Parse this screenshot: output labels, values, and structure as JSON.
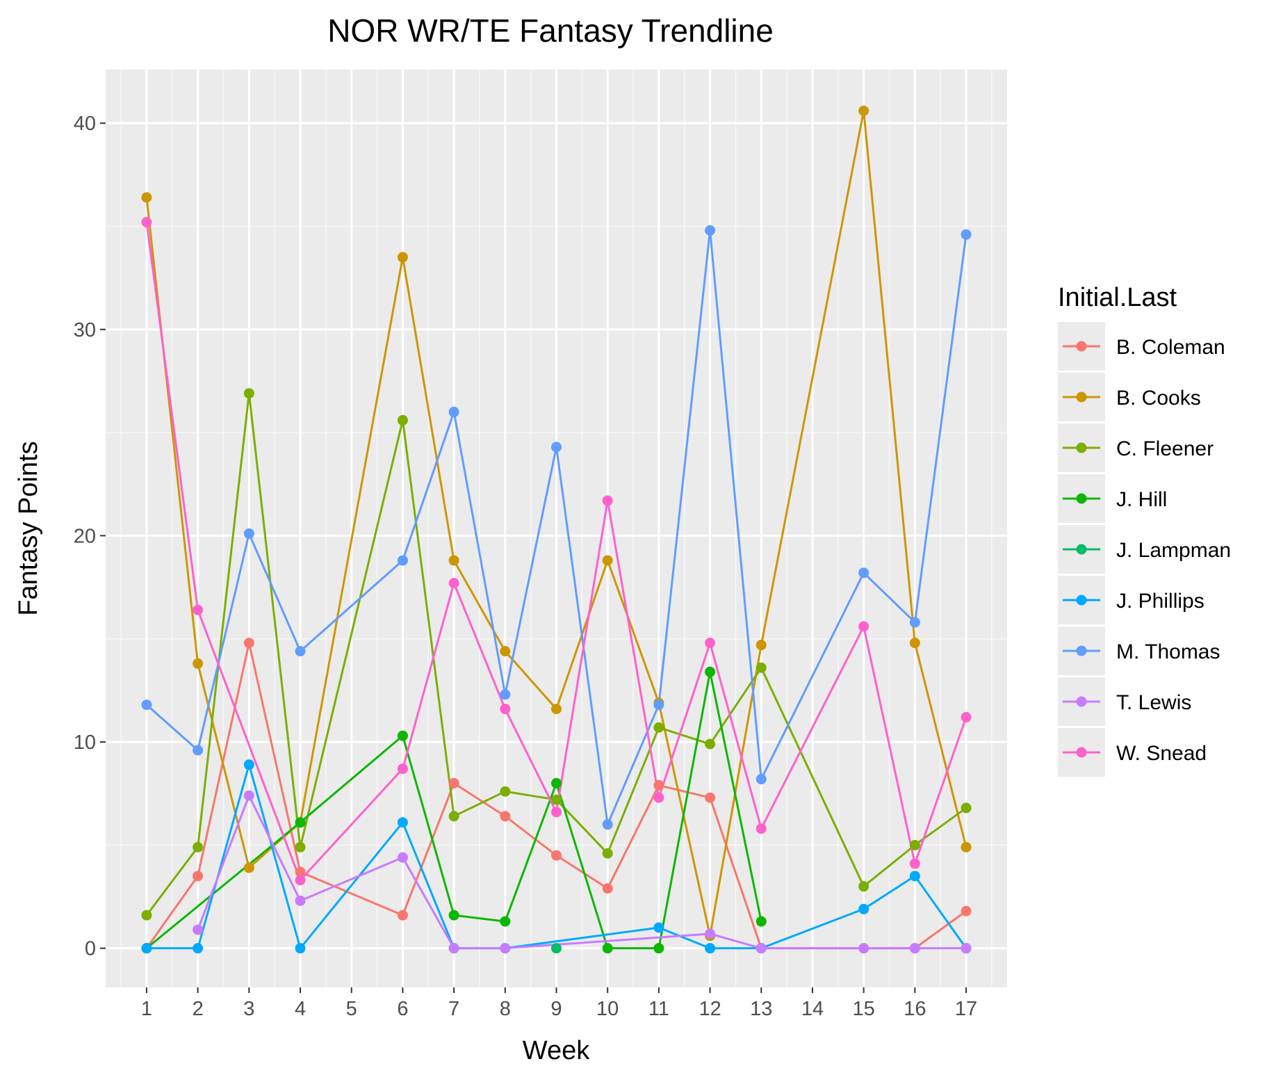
{
  "chart_data": {
    "type": "line",
    "title": "NOR WR/TE Fantasy Trendline",
    "xlabel": "Week",
    "ylabel": "Fantasy Points",
    "x": [
      1,
      2,
      3,
      4,
      5,
      6,
      7,
      8,
      9,
      10,
      11,
      12,
      13,
      14,
      15,
      16,
      17
    ],
    "xlim": [
      0.2,
      17.8
    ],
    "ylim": [
      -1.9,
      42.6
    ],
    "yticks": [
      0,
      10,
      20,
      30,
      40
    ],
    "grid": true,
    "legend": {
      "title": "Initial.Last",
      "position": "right"
    },
    "series": [
      {
        "name": "B. Coleman",
        "color": "#F8766D",
        "points": [
          [
            1,
            0
          ],
          [
            2,
            3.5
          ],
          [
            3,
            14.8
          ],
          [
            4,
            3.7
          ],
          [
            6,
            1.6
          ],
          [
            7,
            8.0
          ],
          [
            8,
            6.4
          ],
          [
            9,
            4.5
          ],
          [
            10,
            2.9
          ],
          [
            11,
            7.9
          ],
          [
            12,
            7.3
          ],
          [
            13,
            0
          ],
          [
            15,
            0
          ],
          [
            16,
            0
          ],
          [
            17,
            1.8
          ]
        ]
      },
      {
        "name": "B. Cooks",
        "color": "#CD9600",
        "points": [
          [
            1,
            36.4
          ],
          [
            2,
            13.8
          ],
          [
            3,
            3.9
          ],
          [
            4,
            6.1
          ],
          [
            6,
            33.5
          ],
          [
            7,
            18.8
          ],
          [
            8,
            14.4
          ],
          [
            9,
            11.6
          ],
          [
            10,
            18.8
          ],
          [
            11,
            11.9
          ],
          [
            12,
            0.6
          ],
          [
            13,
            14.7
          ],
          [
            15,
            40.6
          ],
          [
            16,
            14.8
          ],
          [
            17,
            4.9
          ]
        ]
      },
      {
        "name": "C. Fleener",
        "color": "#7CAE00",
        "points": [
          [
            1,
            1.6
          ],
          [
            2,
            4.9
          ],
          [
            3,
            26.9
          ],
          [
            4,
            4.9
          ],
          [
            6,
            25.6
          ],
          [
            7,
            6.4
          ],
          [
            8,
            7.6
          ],
          [
            9,
            7.2
          ],
          [
            10,
            4.6
          ],
          [
            11,
            10.7
          ],
          [
            12,
            9.9
          ],
          [
            13,
            13.6
          ],
          [
            15,
            3.0
          ],
          [
            16,
            5.0
          ],
          [
            17,
            6.8
          ]
        ]
      },
      {
        "name": "J. Hill",
        "color": "#0CB702",
        "points": [
          [
            1,
            0
          ],
          [
            4,
            6.1
          ],
          [
            6,
            10.3
          ],
          [
            7,
            1.6
          ],
          [
            8,
            1.3
          ],
          [
            9,
            8.0
          ],
          [
            10,
            0
          ],
          [
            11,
            0
          ],
          [
            12,
            13.4
          ],
          [
            13,
            1.3
          ]
        ]
      },
      {
        "name": "J. Lampman",
        "color": "#00BE67",
        "points": [
          [
            9,
            0
          ]
        ]
      },
      {
        "name": "J. Phillips",
        "color": "#00A9FF",
        "points": [
          [
            1,
            0
          ],
          [
            2,
            0
          ],
          [
            3,
            8.9
          ],
          [
            4,
            0
          ],
          [
            6,
            6.1
          ],
          [
            7,
            0
          ],
          [
            8,
            0
          ],
          [
            11,
            1.0
          ],
          [
            12,
            0
          ],
          [
            13,
            0
          ],
          [
            15,
            1.9
          ],
          [
            16,
            3.5
          ],
          [
            17,
            0
          ]
        ]
      },
      {
        "name": "M. Thomas",
        "color": "#619CFF",
        "points": [
          [
            1,
            11.8
          ],
          [
            2,
            9.6
          ],
          [
            3,
            20.1
          ],
          [
            4,
            14.4
          ],
          [
            6,
            18.8
          ],
          [
            7,
            26.0
          ],
          [
            8,
            12.3
          ],
          [
            9,
            24.3
          ],
          [
            10,
            6.0
          ],
          [
            11,
            11.8
          ],
          [
            12,
            34.8
          ],
          [
            13,
            8.2
          ],
          [
            15,
            18.2
          ],
          [
            16,
            15.8
          ],
          [
            17,
            34.6
          ]
        ]
      },
      {
        "name": "T. Lewis",
        "color": "#C77CFF",
        "points": [
          [
            2,
            0.9
          ],
          [
            3,
            7.4
          ],
          [
            4,
            2.3
          ],
          [
            6,
            4.4
          ],
          [
            7,
            0
          ],
          [
            8,
            0
          ],
          [
            12,
            0.7
          ],
          [
            13,
            0
          ],
          [
            15,
            0
          ],
          [
            16,
            0
          ],
          [
            17,
            0
          ]
        ]
      },
      {
        "name": "W. Snead",
        "color": "#FF61CC",
        "points": [
          [
            1,
            35.2
          ],
          [
            2,
            16.4
          ],
          [
            4,
            3.3
          ],
          [
            6,
            8.7
          ],
          [
            7,
            17.7
          ],
          [
            8,
            11.6
          ],
          [
            9,
            6.6
          ],
          [
            10,
            21.7
          ],
          [
            11,
            7.3
          ],
          [
            12,
            14.8
          ],
          [
            13,
            5.8
          ],
          [
            15,
            15.6
          ],
          [
            16,
            4.1
          ],
          [
            17,
            11.2
          ]
        ]
      }
    ]
  }
}
